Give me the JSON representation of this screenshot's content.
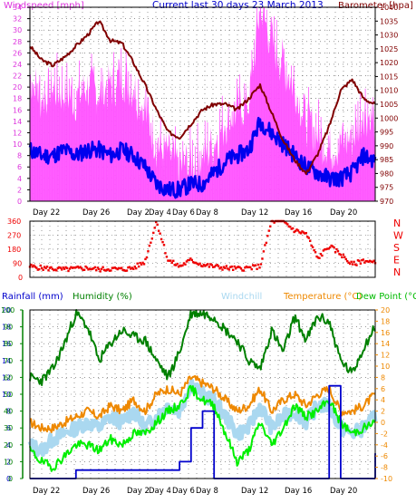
{
  "colors": {
    "windspeed": "#ff55ff",
    "windavg": "#0000ee",
    "barometer": "#800000",
    "direction": "#ee0000",
    "rain": "#0000cc",
    "humidity": "#008000",
    "windchill": "#aad8f0",
    "temperature": "#ee8800",
    "dewpoint": "#00ee00",
    "grid": "#555555",
    "frame": "#000000",
    "windspeed_label": "#dd33dd",
    "title": "#0000cc",
    "rain_label": "#0000cc",
    "humidity_label": "#008000",
    "windchill_label": "#aad8f0",
    "temperature_label": "#ee8800",
    "dewpoint_label": "#00bb00",
    "baro_label": "#800000",
    "nwsen": "#ee0000"
  },
  "chart_data": [
    {
      "type": "line",
      "title": "Current last 30 days 23 March 2013",
      "x_ticks": [
        "Day 22",
        "Day 26",
        "Day 2",
        "Day 4",
        "Day 6",
        "Day 8",
        "Day 12",
        "Day 16",
        "Day 20"
      ],
      "y_left": {
        "label": "Windspeed [mph]",
        "ylim": [
          0,
          34
        ],
        "ticks": [
          0,
          2,
          4,
          6,
          8,
          10,
          12,
          14,
          16,
          18,
          20,
          22,
          24,
          26,
          28,
          30,
          32,
          34
        ]
      },
      "y_right": {
        "label": "Barometer [hpa]",
        "ylim": [
          970,
          1040
        ],
        "ticks": [
          970,
          975,
          980,
          985,
          990,
          995,
          1000,
          1005,
          1010,
          1015,
          1020,
          1025,
          1030,
          1035,
          1040
        ]
      },
      "x": [
        0,
        1,
        2,
        3,
        4,
        5,
        6,
        7,
        8,
        9,
        10,
        11,
        12,
        13,
        14,
        15,
        16,
        17,
        18,
        19,
        20,
        21,
        22,
        23,
        24,
        25,
        26,
        27,
        28,
        29,
        30
      ],
      "series": [
        {
          "name": "Windspeed",
          "axis": "left",
          "values": [
            22,
            18,
            20,
            19,
            18,
            20,
            19,
            20,
            22,
            20,
            16,
            10,
            8,
            6,
            7,
            8,
            10,
            14,
            16,
            17,
            34,
            28,
            24,
            20,
            14,
            12,
            9,
            10,
            11,
            16,
            14
          ]
        },
        {
          "name": "Wind Avg",
          "axis": "left",
          "values": [
            9,
            8,
            8,
            9,
            8,
            9,
            9,
            8,
            9,
            8,
            6,
            3,
            2,
            2,
            3,
            3,
            5,
            7,
            8,
            9,
            14,
            12,
            10,
            8,
            6,
            5,
            4,
            4,
            5,
            8,
            7
          ]
        },
        {
          "name": "Barometer",
          "axis": "right",
          "values": [
            1026,
            1021,
            1019,
            1022,
            1026,
            1030,
            1035,
            1028,
            1027,
            1020,
            1012,
            1003,
            995,
            993,
            998,
            1003,
            1005,
            1005,
            1003,
            1007,
            1012,
            1002,
            992,
            985,
            980,
            987,
            997,
            1010,
            1014,
            1007,
            1005
          ]
        }
      ]
    },
    {
      "type": "scatter",
      "y_right_labels": [
        "N",
        "W",
        "S",
        "E",
        "N"
      ],
      "y_left": {
        "ylim": [
          0,
          360
        ],
        "ticks": [
          0,
          90,
          180,
          270,
          360
        ]
      },
      "x": [
        0,
        1,
        2,
        3,
        4,
        5,
        6,
        7,
        8,
        9,
        10,
        11,
        12,
        13,
        14,
        15,
        16,
        17,
        18,
        19,
        20,
        21,
        22,
        23,
        24,
        25,
        26,
        27,
        28,
        29,
        30
      ],
      "series": [
        {
          "name": "Wind Direction",
          "values": [
            70,
            60,
            55,
            50,
            55,
            60,
            50,
            55,
            50,
            60,
            100,
            360,
            110,
            70,
            110,
            80,
            70,
            60,
            55,
            60,
            70,
            360,
            360,
            300,
            280,
            120,
            200,
            150,
            80,
            110,
            90
          ]
        }
      ]
    },
    {
      "type": "line",
      "x_ticks": [
        "Day 22",
        "Day 26",
        "Day 2",
        "Day 4",
        "Day 6",
        "Day 8",
        "Day 12",
        "Day 16",
        "Day 20"
      ],
      "y_left_outer": {
        "label": "Rainfall (mm)",
        "ylim": [
          0,
          20
        ],
        "ticks": [
          0,
          2,
          4,
          6,
          8,
          10,
          12,
          14,
          16,
          18,
          20
        ]
      },
      "y_left_inner": {
        "label": "Humidity (%)",
        "ylim": [
          0,
          100
        ],
        "ticks": [
          0,
          10,
          20,
          30,
          40,
          50,
          60,
          70,
          80,
          90,
          100
        ]
      },
      "y_right": {
        "ylim": [
          -10,
          20
        ],
        "ticks": [
          -10,
          -8,
          -6,
          -4,
          -2,
          0,
          2,
          4,
          6,
          8,
          10,
          12,
          14,
          16,
          18,
          20
        ]
      },
      "legend_labels": [
        "Windchill",
        "Temperature (°C)",
        "Dew Point (°C"
      ],
      "x": [
        0,
        1,
        2,
        3,
        4,
        5,
        6,
        7,
        8,
        9,
        10,
        11,
        12,
        13,
        14,
        15,
        16,
        17,
        18,
        19,
        20,
        21,
        22,
        23,
        24,
        25,
        26,
        27,
        28,
        29,
        30
      ],
      "series": [
        {
          "name": "Humidity",
          "axis": "humidity",
          "values": [
            60,
            58,
            65,
            80,
            98,
            90,
            70,
            80,
            88,
            84,
            82,
            70,
            60,
            75,
            98,
            98,
            96,
            88,
            82,
            70,
            65,
            88,
            75,
            96,
            82,
            96,
            93,
            70,
            62,
            78,
            90
          ]
        },
        {
          "name": "Temperature",
          "axis": "right",
          "values": [
            0,
            -1,
            -1,
            0,
            1,
            2,
            1,
            3,
            2,
            4,
            2,
            5,
            6,
            5,
            8,
            7,
            6,
            4,
            2,
            3,
            6,
            2,
            4,
            5,
            3,
            5,
            6,
            2,
            2,
            3,
            5
          ]
        },
        {
          "name": "Windchill",
          "axis": "right",
          "values": [
            -4,
            -5,
            -3,
            -2,
            -1,
            0,
            -1,
            1,
            0,
            2,
            -1,
            1,
            3,
            2,
            7,
            5,
            4,
            1,
            -2,
            -1,
            3,
            -1,
            1,
            2,
            0,
            3,
            3,
            -1,
            -2,
            -1,
            1
          ]
        },
        {
          "name": "Dew Point",
          "axis": "right",
          "values": [
            -5,
            -7,
            -8,
            -6,
            -4,
            -4,
            -5,
            -3,
            -4,
            -2,
            -2,
            0,
            2,
            3,
            6,
            4,
            3,
            -2,
            -7,
            -5,
            0,
            -4,
            -1,
            3,
            1,
            2,
            4,
            0,
            -2,
            -1,
            0
          ]
        },
        {
          "name": "Rainfall",
          "axis": "rain",
          "values": [
            0,
            0,
            0,
            0,
            1,
            1,
            1,
            1,
            1,
            1,
            1,
            1,
            1,
            2,
            6,
            8,
            0,
            0,
            0,
            0,
            0,
            0,
            0,
            0,
            0,
            0,
            11,
            0,
            0,
            0,
            3
          ]
        }
      ]
    }
  ]
}
